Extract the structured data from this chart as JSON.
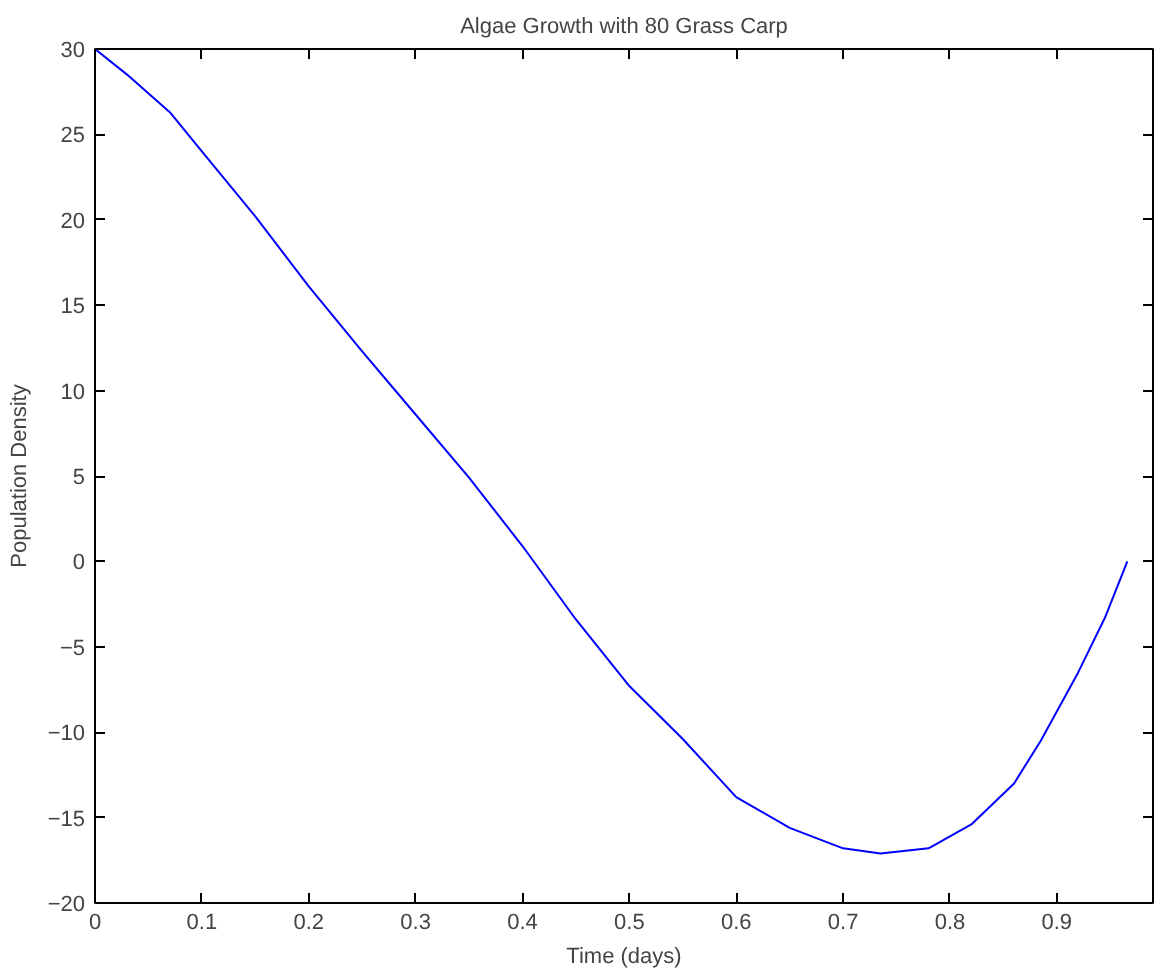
{
  "chart_data": {
    "type": "line",
    "title": "Algae Growth with 80 Grass Carp",
    "xlabel": "Time (days)",
    "ylabel": "Population Density",
    "x": [
      0,
      0.03,
      0.07,
      0.1,
      0.15,
      0.2,
      0.25,
      0.3,
      0.35,
      0.4,
      0.45,
      0.5,
      0.55,
      0.6,
      0.65,
      0.7,
      0.735,
      0.78,
      0.82,
      0.86,
      0.885,
      0.92,
      0.945,
      0.966
    ],
    "series": [
      {
        "color": "#0000ff",
        "values": [
          30,
          28.5,
          26.3,
          24,
          20.2,
          16.1,
          12.3,
          8.6,
          4.9,
          0.9,
          -3.4,
          -7.3,
          -10.4,
          -13.8,
          -15.6,
          -16.8,
          -17.1,
          -16.8,
          -15.4,
          -13,
          -10.5,
          -6.5,
          -3.3,
          0
        ]
      }
    ],
    "xlim": [
      0,
      0.99
    ],
    "ylim": [
      -20,
      30
    ],
    "xticks": [
      0,
      0.1,
      0.2,
      0.3,
      0.4,
      0.5,
      0.6,
      0.7,
      0.8,
      0.9
    ],
    "yticks": [
      -20,
      -15,
      -10,
      -5,
      0,
      5,
      10,
      15,
      20,
      25,
      30
    ],
    "grid": false
  }
}
